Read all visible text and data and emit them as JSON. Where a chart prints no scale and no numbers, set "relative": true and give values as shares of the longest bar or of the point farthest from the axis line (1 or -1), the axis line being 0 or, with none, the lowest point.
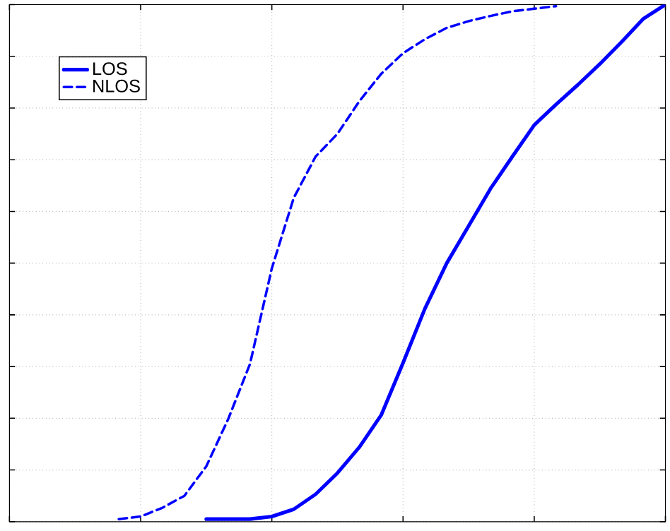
{
  "chart_data": {
    "type": "line",
    "relative": true,
    "grid": true,
    "legend": "top left",
    "tick_labels": false,
    "marker": "none",
    "categories": [
      null,
      null,
      null,
      null,
      null,
      null,
      null,
      null,
      null,
      null,
      null,
      null,
      null,
      null,
      null,
      null,
      null,
      null,
      null,
      null,
      null,
      null,
      null,
      null,
      null,
      null,
      null,
      null,
      null,
      null,
      null
    ],
    "series": [
      {
        "name": "LOS",
        "color": "#0000ff",
        "line_style": "solid",
        "values": [
          null,
          null,
          null,
          null,
          null,
          null,
          null,
          null,
          null,
          0.005,
          0.005,
          0.005,
          0.01,
          0.024,
          0.053,
          0.094,
          0.144,
          0.206,
          0.307,
          0.412,
          0.5,
          0.572,
          0.644,
          0.706,
          0.767,
          0.807,
          0.845,
          0.885,
          0.928,
          0.973,
          1.0
        ]
      },
      {
        "name": "NLOS",
        "color": "#0000ff",
        "line_style": "dashed",
        "values": [
          null,
          null,
          null,
          null,
          null,
          0.005,
          0.01,
          0.027,
          0.05,
          0.107,
          0.198,
          0.305,
          0.49,
          0.626,
          0.706,
          0.75,
          0.813,
          0.866,
          0.906,
          0.933,
          0.955,
          0.968,
          0.978,
          0.987,
          0.992,
          0.997,
          null,
          null,
          null,
          null,
          null
        ]
      }
    ]
  }
}
